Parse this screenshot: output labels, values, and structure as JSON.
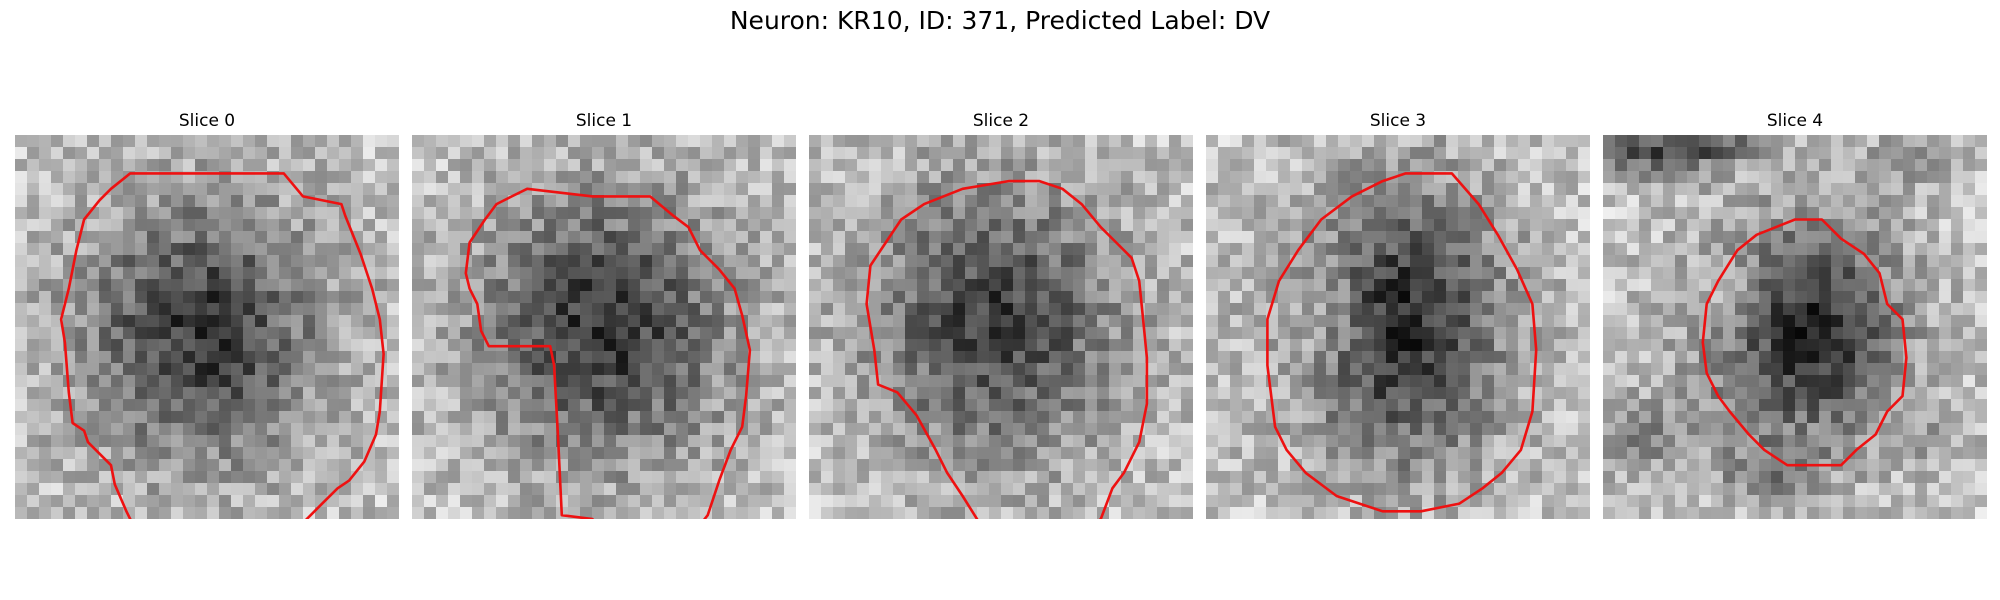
{
  "figure": {
    "title": "Neuron: KR10, ID: 371, Predicted Label: DV"
  },
  "slices": [
    {
      "title": "Slice 0",
      "seed": 11,
      "dark": [
        15.5,
        16.5,
        9,
        9.5,
        0.8
      ],
      "ring": [
        15.5,
        16,
        13.5,
        14.5,
        0.7
      ]
    },
    {
      "title": "Slice 1",
      "seed": 23,
      "dark": [
        16,
        16,
        9.5,
        10,
        0.85
      ],
      "ring": [
        16,
        16,
        14,
        14.5,
        0.6
      ]
    },
    {
      "title": "Slice 2",
      "seed": 37,
      "dark": [
        15.5,
        15.5,
        9.5,
        10.5,
        0.8
      ],
      "ring": [
        15.5,
        15.5,
        14,
        15,
        0.55
      ]
    },
    {
      "title": "Slice 3",
      "seed": 41,
      "dark": [
        16.5,
        16,
        7.5,
        11,
        0.95
      ],
      "ring": [
        15.5,
        15.5,
        13,
        13.5,
        0.6
      ],
      "light": [
        10,
        15,
        3.5,
        5,
        0.6
      ]
    },
    {
      "title": "Slice 4",
      "seed": 53,
      "dark": [
        17,
        16.5,
        7.5,
        8.5,
        1.0
      ],
      "ring": [
        16,
        16.5,
        11.5,
        12.5,
        0.5
      ],
      "light": [
        11,
        14,
        3,
        3.5,
        0.7
      ],
      "extras": [
        [
          4,
          1.5,
          5,
          2,
          0.9
        ],
        [
          10,
          1,
          3,
          1.5,
          0.6
        ],
        [
          26,
          2,
          4,
          2,
          0.4
        ],
        [
          3,
          25,
          4,
          3,
          0.5
        ],
        [
          14,
          28,
          4,
          2,
          0.5
        ],
        [
          27,
          26,
          3,
          2,
          0.3
        ]
      ]
    }
  ],
  "colors": {
    "outline": "#ee1111"
  }
}
